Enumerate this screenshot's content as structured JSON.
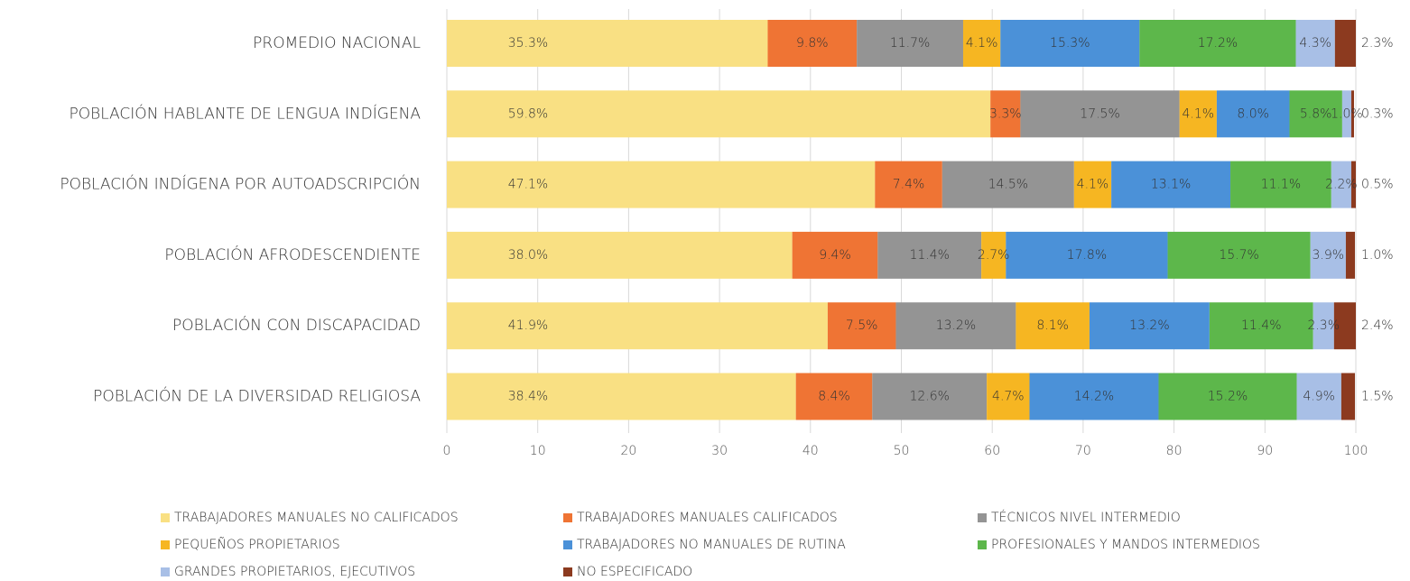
{
  "chart_data": {
    "type": "stacked-barh",
    "categories": [
      "PROMEDIO NACIONAL",
      "POBLACIÓN HABLANTE DE LENGUA INDÍGENA",
      "POBLACIÓN INDÍGENA POR AUTOADSCRIPCIÓN",
      "POBLACIÓN AFRODESCENDIENTE",
      "POBLACIÓN CON DISCAPACIDAD",
      "POBLACIÓN DE LA DIVERSIDAD RELIGIOSA"
    ],
    "series": [
      {
        "name": "TRABAJADORES MANUALES NO CALIFICADOS",
        "color": "#f9e083",
        "values": [
          35.3,
          59.8,
          47.1,
          38.0,
          41.9,
          38.4
        ],
        "value_labels": [
          "35.3%",
          "59.8%",
          "47.1%",
          "38.0%",
          "41.9%",
          "38.4%"
        ]
      },
      {
        "name": "TRABAJADORES MANUALES CALIFICADOS",
        "color": "#ef7434",
        "values": [
          9.8,
          3.3,
          7.4,
          9.4,
          7.5,
          8.4
        ],
        "value_labels": [
          "9.8%",
          "3.3%",
          "7.4%",
          "9.4%",
          "7.5%",
          "8.4%"
        ]
      },
      {
        "name": "TÉCNICOS NIVEL INTERMEDIO",
        "color": "#949494",
        "values": [
          11.7,
          17.5,
          14.5,
          11.4,
          13.2,
          12.6
        ],
        "value_labels": [
          "11.7%",
          "17.5%",
          "14.5%",
          "11.4%",
          "13.2%",
          "12.6%"
        ]
      },
      {
        "name": "PEQUEÑOS PROPIETARIOS",
        "color": "#f6b622",
        "values": [
          4.1,
          4.1,
          4.1,
          2.7,
          8.1,
          4.7
        ],
        "value_labels": [
          "4.1%",
          "4.1%",
          "4.1%",
          "2.7%",
          "8.1%",
          "4.7%"
        ]
      },
      {
        "name": "TRABAJADORES NO MANUALES DE RUTINA",
        "color": "#4b91d8",
        "values": [
          15.3,
          8.0,
          13.1,
          17.8,
          13.2,
          14.2
        ],
        "value_labels": [
          "15.3%",
          "8.0%",
          "13.1%",
          "17.8%",
          "13.2%",
          "14.2%"
        ]
      },
      {
        "name": "PROFESIONALES Y MANDOS INTERMEDIOS",
        "color": "#5db74b",
        "values": [
          17.2,
          5.8,
          11.1,
          15.7,
          11.4,
          15.2
        ],
        "value_labels": [
          "17.2%",
          "5.8%",
          "11.1%",
          "15.7%",
          "11.4%",
          "15.2%"
        ]
      },
      {
        "name": "GRANDES PROPIETARIOS, EJECUTIVOS",
        "color": "#a8bfe6",
        "values": [
          4.3,
          1.0,
          2.2,
          3.9,
          2.3,
          4.9
        ],
        "value_labels": [
          "4.3%",
          "1.0%",
          "2.2%",
          "3.9%",
          "2.3%",
          "4.9%"
        ]
      },
      {
        "name": "NO ESPECIFICADO",
        "color": "#8c3a1f",
        "values": [
          2.3,
          0.3,
          0.5,
          1.0,
          2.4,
          1.5
        ],
        "value_labels": [
          "2.3%",
          "0.3%",
          "0.5%",
          "1.0%",
          "2.4%",
          "1.5%"
        ]
      }
    ],
    "xlim": [
      0,
      100
    ],
    "xticks": [
      0,
      10,
      20,
      30,
      40,
      50,
      60,
      70,
      80,
      90,
      100
    ],
    "grid": true
  }
}
